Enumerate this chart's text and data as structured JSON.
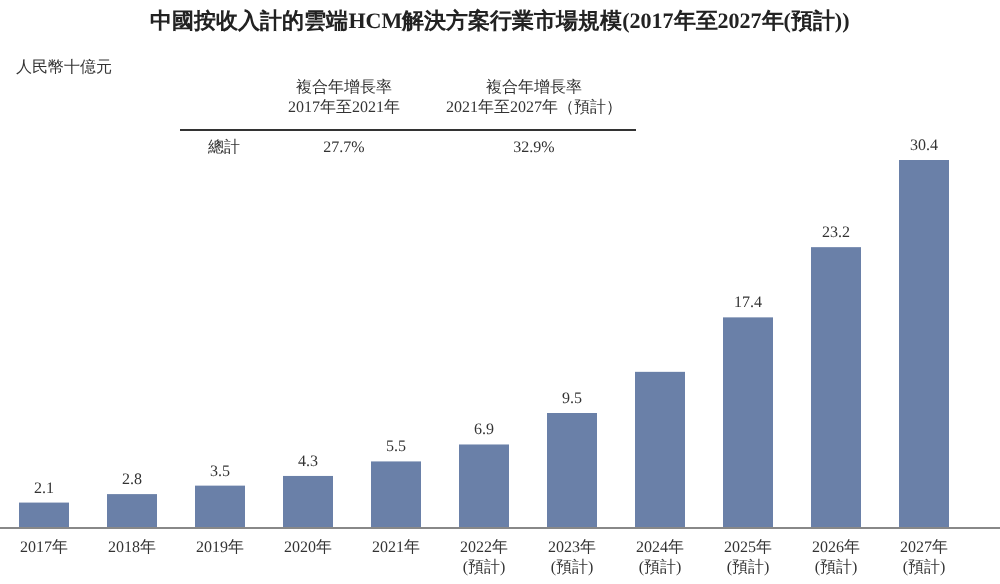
{
  "chart_data": {
    "type": "bar",
    "title": "中國按收入計的雲端HCM解決方案行業市場規模(2017年至2027年(預計))",
    "categories": [
      "2017年",
      "2018年",
      "2019年",
      "2020年",
      "2021年",
      "2022年\n(預計)",
      "2023年\n(預計)",
      "2024年\n(預計)",
      "2025年\n(預計)",
      "2026年\n(預計)",
      "2027年\n(預計)"
    ],
    "values": [
      2.1,
      2.8,
      3.5,
      4.3,
      5.5,
      6.9,
      9.5,
      12.9,
      17.4,
      23.2,
      30.4
    ],
    "value_labels": [
      "2.1",
      "2.8",
      "3.5",
      "4.3",
      "5.5",
      "6.9",
      "9.5",
      null,
      "17.4",
      "23.2",
      "30.4"
    ],
    "color": "#6a80a8",
    "annotations": [
      "複合年增長率\n2017年至2021年",
      "複合年增長率\n2021年至2027年（預計）",
      "總計",
      "27.7%",
      "32.9%",
      "人民幣十億元"
    ]
  }
}
